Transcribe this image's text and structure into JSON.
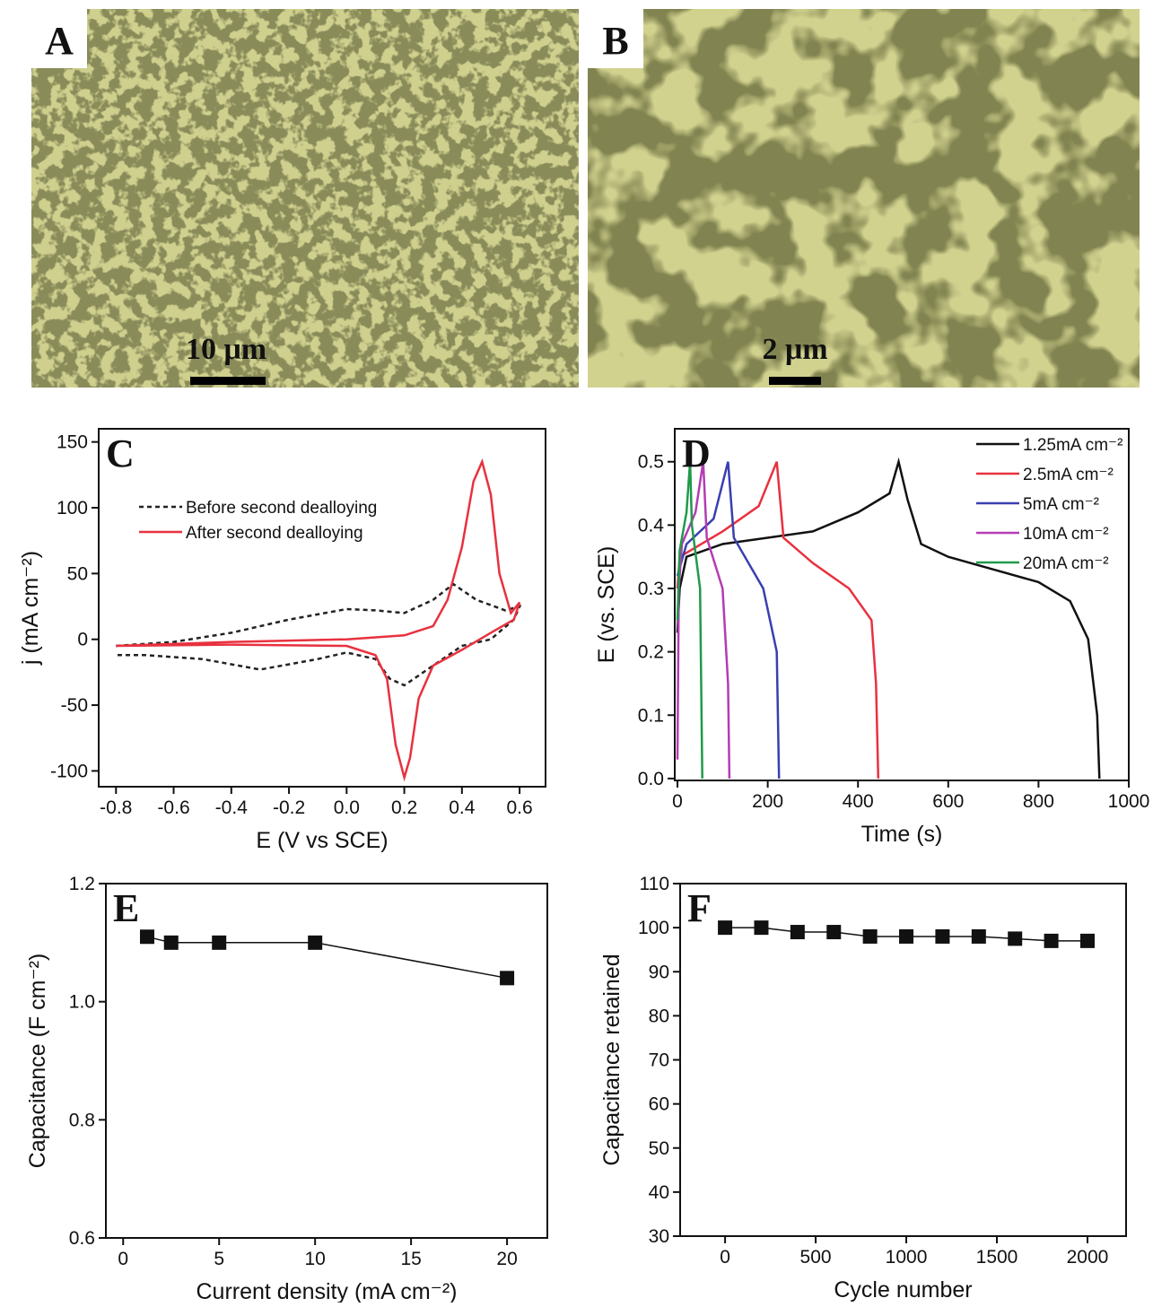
{
  "images": [
    {
      "panel_label": "A",
      "scale_bar": "10 μm"
    },
    {
      "panel_label": "B",
      "scale_bar": "2 μm"
    }
  ],
  "chart_data": [
    {
      "type": "line",
      "panel_label": "C",
      "x_label": "E (V vs SCE)",
      "y_label": "j (mA cm⁻²)",
      "xlim": [
        -0.86,
        0.69
      ],
      "xticks": [
        -0.8,
        -0.6,
        -0.4,
        -0.2,
        {
          "value": 0,
          "label": "0.0"
        },
        0.2,
        0.4,
        0.6
      ],
      "ylim": [
        -112,
        160
      ],
      "yticks": [
        -100,
        -50,
        0,
        50,
        100,
        150
      ],
      "legend": "upper left",
      "series": [
        {
          "name": "Before second dealloying",
          "color": "#222222",
          "dash": true,
          "x": [
            -0.8,
            -0.6,
            -0.4,
            -0.2,
            0,
            0.1,
            0.2,
            0.3,
            0.37,
            0.45,
            0.55,
            0.6,
            0.58,
            0.5,
            0.4,
            0.3,
            0.2,
            0.15,
            0.1,
            0,
            -0.1,
            -0.3,
            -0.5,
            -0.7,
            -0.8
          ],
          "values": [
            -5,
            -2,
            5,
            15,
            23,
            22,
            20,
            30,
            42,
            30,
            22,
            25,
            15,
            0,
            -5,
            -20,
            -35,
            -30,
            -15,
            -10,
            -15,
            -23,
            -15,
            -12,
            -12
          ]
        },
        {
          "name": "After second dealloying",
          "color": "#e8313f",
          "dash": false,
          "x": [
            -0.8,
            -0.4,
            0,
            0.2,
            0.3,
            0.35,
            0.4,
            0.44,
            0.47,
            0.5,
            0.53,
            0.57,
            0.6,
            0.58,
            0.5,
            0.4,
            0.3,
            0.25,
            0.22,
            0.2,
            0.17,
            0.14,
            0.1,
            0,
            -0.4,
            -0.8
          ],
          "values": [
            -5,
            -2,
            0,
            3,
            10,
            30,
            70,
            120,
            135,
            110,
            50,
            20,
            28,
            15,
            5,
            -8,
            -20,
            -45,
            -90,
            -105,
            -80,
            -30,
            -12,
            -5,
            -4,
            -5
          ]
        }
      ]
    },
    {
      "type": "line",
      "panel_label": "D",
      "x_label": "Time (s)",
      "y_label": "E (vs. SCE)",
      "xlim": [
        -6,
        1000
      ],
      "xticks": [
        0,
        200,
        400,
        600,
        800,
        1000
      ],
      "ylim": [
        -0.003,
        0.552
      ],
      "yticks": [
        {
          "value": 0,
          "label": "0.0"
        },
        0.1,
        0.2,
        0.3,
        0.4,
        0.5
      ],
      "legend": "upper right",
      "series": [
        {
          "name": "1.25mA cm⁻²",
          "color": "#111111",
          "x": [
            0,
            5,
            20,
            100,
            300,
            400,
            470,
            490,
            510,
            540,
            600,
            700,
            800,
            870,
            910,
            930,
            935
          ],
          "values": [
            0.23,
            0.3,
            0.35,
            0.37,
            0.39,
            0.42,
            0.45,
            0.5,
            0.44,
            0.37,
            0.35,
            0.33,
            0.31,
            0.28,
            0.22,
            0.1,
            0
          ]
        },
        {
          "name": "2.5mA cm⁻²",
          "color": "#e8313f",
          "x": [
            0,
            5,
            100,
            180,
            220,
            235,
            300,
            380,
            430,
            440,
            445
          ],
          "values": [
            0.3,
            0.35,
            0.39,
            0.43,
            0.5,
            0.38,
            0.34,
            0.3,
            0.25,
            0.15,
            0
          ]
        },
        {
          "name": "5mA cm⁻²",
          "color": "#3a3fb0",
          "x": [
            0,
            20,
            80,
            112,
            125,
            190,
            220,
            225
          ],
          "values": [
            0.32,
            0.37,
            0.41,
            0.5,
            0.38,
            0.3,
            0.2,
            0
          ]
        },
        {
          "name": "10mA cm⁻²",
          "color": "#b43cb4",
          "x": [
            0,
            3,
            10,
            40,
            57,
            65,
            100,
            112,
            115
          ],
          "values": [
            0.03,
            0.3,
            0.37,
            0.42,
            0.5,
            0.38,
            0.3,
            0.15,
            0
          ]
        },
        {
          "name": "20mA cm⁻²",
          "color": "#1f9a4a",
          "x": [
            0,
            5,
            20,
            28,
            32,
            50,
            55
          ],
          "values": [
            0.25,
            0.36,
            0.42,
            0.5,
            0.4,
            0.3,
            0
          ]
        }
      ]
    },
    {
      "type": "line",
      "panel_label": "E",
      "x_label": "Current density (mA cm⁻²)",
      "y_label": "Capacitance (F cm⁻²)",
      "xlim": [
        -0.9,
        22.1
      ],
      "xticks": [
        0,
        5,
        10,
        15,
        20
      ],
      "ylim": [
        0.6,
        1.2
      ],
      "yticks": [
        0.6,
        0.8,
        {
          "value": 1,
          "label": "1.0"
        },
        1.2
      ],
      "series": [
        {
          "color": "#111111",
          "marker": "square",
          "x": [
            1.25,
            2.5,
            5,
            10,
            20
          ],
          "values": [
            1.11,
            1.1,
            1.1,
            1.1,
            1.04
          ]
        }
      ]
    },
    {
      "type": "line",
      "panel_label": "F",
      "x_label": "Cycle number",
      "y_label": "Capacitance retained",
      "xlim": [
        -248,
        2213
      ],
      "xticks": [
        0,
        500,
        1000,
        1500,
        2000
      ],
      "ylim": [
        30,
        110
      ],
      "yticks": [
        30,
        40,
        50,
        60,
        70,
        80,
        90,
        100,
        110
      ],
      "series": [
        {
          "color": "#111111",
          "marker": "square",
          "x": [
            0,
            200,
            400,
            600,
            800,
            1000,
            1200,
            1400,
            1600,
            1800,
            2000
          ],
          "values": [
            100,
            100,
            99,
            99,
            98,
            98,
            98,
            98,
            97.5,
            97,
            97
          ]
        }
      ]
    }
  ]
}
